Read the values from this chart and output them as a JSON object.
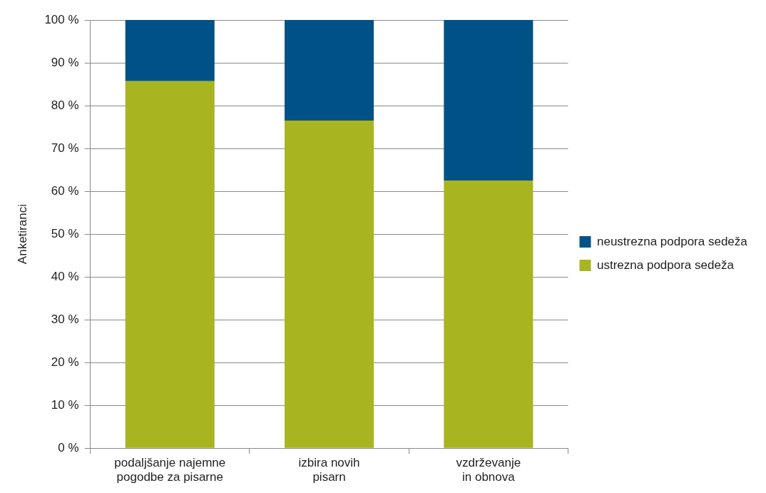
{
  "chart_data": {
    "type": "bar",
    "stacked": true,
    "ylabel": "Anketiranci",
    "categories": [
      "podaljšanje najemne pogodbe za pisarne",
      "izbira novih pisarn",
      "vzdrževanje in obnova"
    ],
    "series": [
      {
        "name": "ustrezna podpora sedeža",
        "color": "#a8b520",
        "values": [
          85.7,
          76.5,
          62.5
        ]
      },
      {
        "name": "neustrezna podpora sedeža",
        "color": "#005286",
        "values": [
          14.3,
          23.5,
          37.5
        ]
      }
    ],
    "ylim": [
      0,
      100
    ],
    "yticks": [
      {
        "value": 0,
        "label": "0 %"
      },
      {
        "value": 10,
        "label": "10 %"
      },
      {
        "value": 20,
        "label": "20 %"
      },
      {
        "value": 30,
        "label": "30 %"
      },
      {
        "value": 40,
        "label": "40 %"
      },
      {
        "value": 50,
        "label": "50 %"
      },
      {
        "value": 60,
        "label": "60 %"
      },
      {
        "value": 70,
        "label": "70 %"
      },
      {
        "value": 80,
        "label": "80 %"
      },
      {
        "value": 90,
        "label": "90 %"
      },
      {
        "value": 100,
        "label": "100 %"
      }
    ],
    "grid": "y",
    "legend": "right"
  }
}
